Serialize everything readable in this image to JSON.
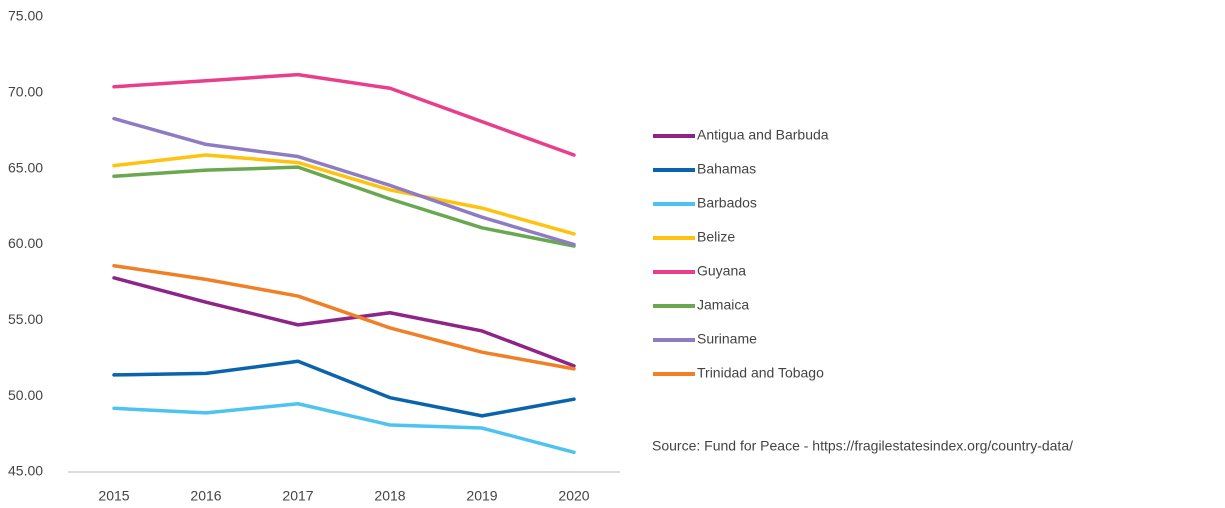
{
  "chart_data": {
    "type": "line",
    "categories": [
      "2015",
      "2016",
      "2017",
      "2018",
      "2019",
      "2020"
    ],
    "series": [
      {
        "name": "Antigua and Barbuda",
        "color": "#8e2388",
        "values": [
          57.8,
          56.2,
          54.7,
          55.5,
          54.3,
          52.0
        ]
      },
      {
        "name": "Bahamas",
        "color": "#0a64ad",
        "values": [
          51.4,
          51.5,
          52.3,
          49.9,
          48.7,
          49.8
        ]
      },
      {
        "name": "Barbados",
        "color": "#4dc3ef",
        "values": [
          49.2,
          48.9,
          49.5,
          48.1,
          47.9,
          46.3
        ]
      },
      {
        "name": "Belize",
        "color": "#ffc20e",
        "values": [
          65.2,
          65.9,
          65.4,
          63.6,
          62.4,
          60.7
        ]
      },
      {
        "name": "Guyana",
        "color": "#e83e8c",
        "values": [
          70.4,
          70.8,
          71.2,
          70.3,
          68.1,
          65.9
        ]
      },
      {
        "name": "Jamaica",
        "color": "#6aa84f",
        "values": [
          64.5,
          64.9,
          65.1,
          63.0,
          61.1,
          59.9
        ]
      },
      {
        "name": "Suriname",
        "color": "#8e7cc3",
        "values": [
          68.3,
          66.6,
          65.8,
          63.9,
          61.8,
          60.0
        ]
      },
      {
        "name": "Trinidad and Tobago",
        "color": "#f07f26",
        "values": [
          58.6,
          57.7,
          56.6,
          54.5,
          52.9,
          51.8
        ]
      }
    ],
    "ylim": [
      45,
      75
    ],
    "yticks": [
      {
        "value": 45,
        "label": "45.00"
      },
      {
        "value": 50,
        "label": "50.00"
      },
      {
        "value": 55,
        "label": "55.00"
      },
      {
        "value": 60,
        "label": "60.00"
      },
      {
        "value": 65,
        "label": "65.00"
      },
      {
        "value": 70,
        "label": "70.00"
      },
      {
        "value": 75,
        "label": "75.00"
      }
    ],
    "grid": false,
    "legend": "right",
    "source": "Source: Fund for Peace - https://fragilestatesindex.org/country-data/"
  }
}
